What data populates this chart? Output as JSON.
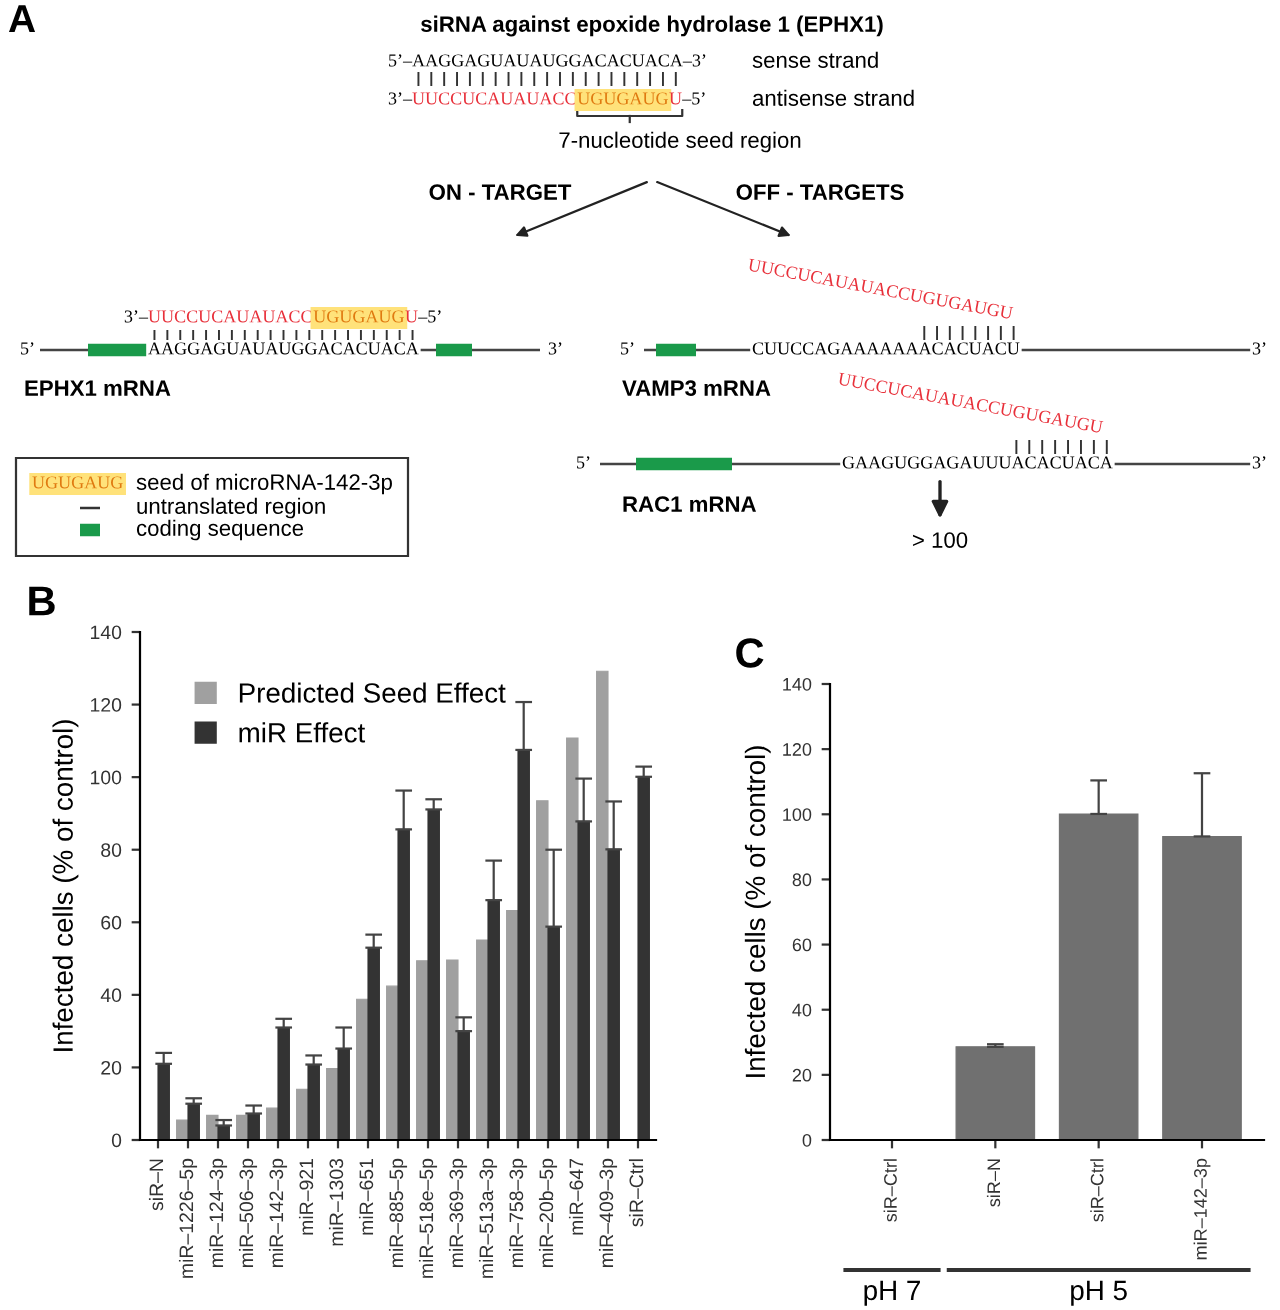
{
  "chart_data": [
    {
      "type": "other",
      "title": "A",
      "annotations": [
        "siRNA against epoxide hydrolase 1 (EPHX1)",
        "5’–AAGGAGUAUAUGGACACUACA–3’",
        "sense strand",
        "3’–",
        "UUCCUCAUAUACC",
        "UGUGAUG",
        "U",
        "–5’",
        "antisense strand",
        "7-nucleotide seed region",
        "ON - TARGET",
        "OFF - TARGETS",
        "3’–",
        "UUCCUCAUAUACC",
        "UGUGAUG",
        "U",
        "–5’",
        "5’",
        "AAGGAGUAUAUGGACACUACA",
        "3’",
        "EPHX1 mRNA",
        "UUCCUCAUAUACCUGUGAUGU",
        "5’",
        "CUUCCAGAAAAAAACACUACU",
        "3’",
        "VAMP3 mRNA",
        "UUCCUCAUAUACCUGUGAUGU",
        "5’",
        "GAAGUGGAGAUUUACACUACA",
        "3’",
        "RAC1 mRNA",
        "> 100",
        "UGUGAUG",
        "seed of microRNA-142-3p",
        "untranslated region",
        "coding sequence"
      ]
    },
    {
      "type": "bar",
      "title": "B",
      "ylabel": "Infected cells (% of control)",
      "categories": [
        "siR–N",
        "miR–1226–5p",
        "miR–124–3p",
        "miR–506–3p",
        "miR–142–3p",
        "miR–921",
        "miR–1303",
        "miR–651",
        "miR–885–5p",
        "miR–518e–5p",
        "miR–369–3p",
        "miR–513a–3p",
        "miR–758–3p",
        "miR–20b–5p",
        "miR–647",
        "miR–409–3p",
        "siR–Ctrl"
      ],
      "series": [
        {
          "name": "Predicted Seed Effect",
          "color": "#a0a0a0",
          "values": [
            null,
            5.5,
            6.8,
            6.8,
            8.8,
            14,
            19.7,
            38.8,
            42.4,
            49.4,
            49.6,
            55.1,
            63.2,
            93.5,
            110.8,
            129.2,
            null
          ]
        },
        {
          "name": "miR Effect",
          "color": "#333333",
          "values": [
            21,
            10,
            4,
            7.3,
            31,
            20.8,
            25.2,
            53,
            85.6,
            91.1,
            30,
            66.1,
            107.5,
            58.8,
            87.8,
            80.1,
            100.1
          ],
          "errors": [
            [
              21,
              24
            ],
            [
              10,
              11.5
            ],
            [
              4,
              5.5
            ],
            [
              7.3,
              9.5
            ],
            [
              31,
              33.4
            ],
            [
              20.8,
              23.3
            ],
            [
              25.2,
              31
            ],
            [
              53,
              56.6
            ],
            [
              85.6,
              96.3
            ],
            [
              91.1,
              93.9
            ],
            [
              30,
              33.8
            ],
            [
              66.1,
              77
            ],
            [
              107.5,
              120.7
            ],
            [
              58.8,
              80
            ],
            [
              87.8,
              99.6
            ],
            [
              80.1,
              93.3
            ],
            [
              100.1,
              102.9
            ]
          ]
        }
      ],
      "ylim": [
        0,
        140
      ],
      "yticks": [
        0,
        20,
        40,
        60,
        80,
        100,
        120,
        140
      ],
      "legend": "top left",
      "grid": false
    },
    {
      "type": "bar",
      "title": "C",
      "ylabel": "Infected cells (% of control)",
      "categories": [
        "siR–Ctrl",
        "siR–N",
        "siR–Ctrl",
        "miR–142–3p"
      ],
      "values": [
        null,
        28.6,
        100.1,
        93.2
      ],
      "color": "#707070",
      "errors": [
        null,
        [
          28.6,
          29.4
        ],
        [
          100.1,
          110.4
        ],
        [
          93.2,
          112.6
        ]
      ],
      "ylim": [
        0,
        140
      ],
      "yticks": [
        0,
        20,
        40,
        60,
        80,
        100,
        120,
        140
      ],
      "grid": false,
      "annotations": [
        "pH 7",
        "pH 5"
      ]
    }
  ]
}
